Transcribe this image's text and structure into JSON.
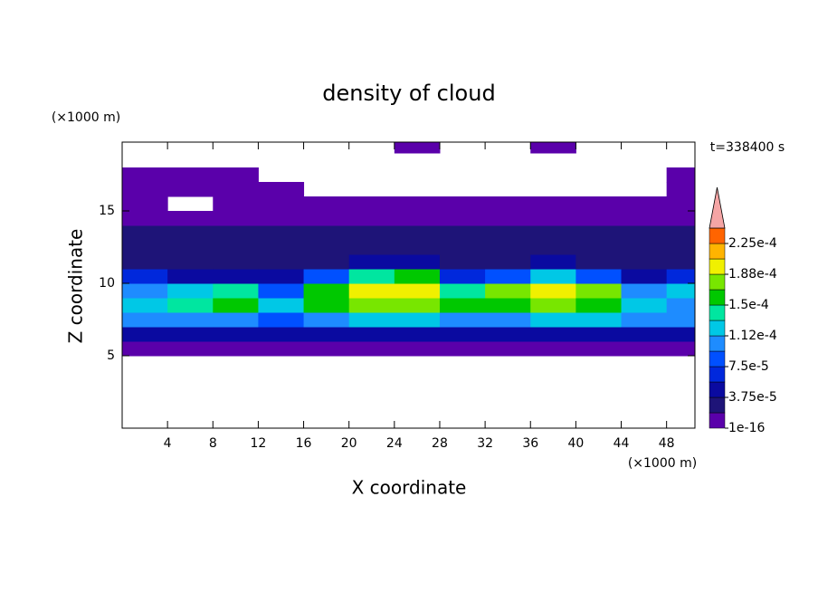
{
  "chart_data": {
    "type": "contour",
    "title": "density of cloud",
    "xlabel": "X coordinate",
    "ylabel": "Z coordinate",
    "xlabel_unit": "(×1000 m)",
    "ylabel_unit": "(×1000 m)",
    "annotation": "t=338400 s",
    "xlim": [
      0,
      50.5
    ],
    "ylim": [
      0,
      19.75
    ],
    "xticks": [
      4,
      8,
      12,
      16,
      20,
      24,
      28,
      32,
      36,
      40,
      44,
      48
    ],
    "yticks": [
      5,
      10,
      15
    ],
    "x_edges": [
      0,
      4,
      8,
      12,
      16,
      20,
      24,
      28,
      32,
      36,
      40,
      44,
      48,
      50.5
    ],
    "z_edges": [
      0,
      1,
      2,
      3,
      4,
      5,
      6,
      7,
      8,
      9,
      10,
      11,
      12,
      13,
      14,
      15,
      16,
      17,
      18,
      19,
      19.75
    ],
    "field": [
      [
        null,
        null,
        null,
        null,
        null,
        null,
        null,
        null,
        null,
        null,
        null,
        null,
        null
      ],
      [
        null,
        null,
        null,
        null,
        null,
        null,
        null,
        null,
        null,
        null,
        null,
        null,
        null
      ],
      [
        null,
        null,
        null,
        null,
        null,
        null,
        null,
        null,
        null,
        null,
        null,
        null,
        null
      ],
      [
        null,
        null,
        null,
        null,
        null,
        null,
        null,
        null,
        null,
        null,
        null,
        null,
        null
      ],
      [
        null,
        null,
        null,
        null,
        null,
        null,
        null,
        null,
        null,
        null,
        null,
        null,
        null
      ],
      [
        1.5e-05,
        1.5e-05,
        1.5e-05,
        1.5e-05,
        1.5e-05,
        1.5e-05,
        1.5e-05,
        1.5e-05,
        1.5e-05,
        1.5e-05,
        1.5e-05,
        1.5e-05,
        1.5e-05
      ],
      [
        4e-05,
        4e-05,
        4e-05,
        4e-05,
        4.5e-05,
        4.5e-05,
        4.5e-05,
        4e-05,
        4e-05,
        4.5e-05,
        4e-05,
        4e-05,
        4e-05
      ],
      [
        0.0001,
        0.00011,
        0.00011,
        9e-05,
        0.00011,
        0.00012,
        0.00012,
        0.00011,
        0.00011,
        0.00012,
        0.00012,
        0.0001,
        0.0001
      ],
      [
        0.00012,
        0.00014,
        0.00015,
        0.00012,
        0.00016,
        0.00018,
        0.00018,
        0.00015,
        0.00016,
        0.00018,
        0.00016,
        0.00012,
        0.00011
      ],
      [
        0.0001,
        0.00012,
        0.00014,
        9e-05,
        0.00015,
        0.00019,
        0.000195,
        0.00014,
        0.00017,
        0.000195,
        0.00017,
        0.0001,
        0.00012
      ],
      [
        6e-05,
        5e-05,
        5e-05,
        4e-05,
        8e-05,
        0.00014,
        0.00015,
        7e-05,
        9e-05,
        0.00012,
        8e-05,
        5e-05,
        6e-05
      ],
      [
        3.5e-05,
        3e-05,
        3e-05,
        3e-05,
        3.5e-05,
        4e-05,
        4.5e-05,
        3.5e-05,
        3.5e-05,
        4e-05,
        3.5e-05,
        3e-05,
        3.5e-05
      ],
      [
        2.5e-05,
        2.5e-05,
        2.5e-05,
        2.5e-05,
        2.5e-05,
        2.5e-05,
        2.5e-05,
        2.5e-05,
        2.5e-05,
        2.5e-05,
        2.5e-05,
        2.5e-05,
        2.5e-05
      ],
      [
        2e-05,
        2e-05,
        2e-05,
        2e-05,
        2e-05,
        2e-05,
        2e-05,
        2e-05,
        2e-05,
        2e-05,
        2e-05,
        2e-05,
        2e-05
      ],
      [
        1e-05,
        1e-05,
        1e-05,
        1e-05,
        1e-05,
        1e-05,
        1e-05,
        1e-05,
        1e-05,
        1e-05,
        1e-05,
        1e-05,
        1e-05
      ],
      [
        5e-06,
        null,
        5e-06,
        5e-06,
        5e-06,
        5e-06,
        5e-06,
        5e-06,
        5e-06,
        5e-06,
        5e-06,
        5e-06,
        5e-06
      ],
      [
        5e-06,
        5e-06,
        5e-06,
        5e-06,
        null,
        null,
        null,
        null,
        null,
        null,
        null,
        null,
        5e-06
      ],
      [
        5e-06,
        5e-06,
        5e-06,
        null,
        null,
        null,
        null,
        null,
        null,
        null,
        null,
        null,
        5e-06
      ],
      [
        null,
        null,
        null,
        null,
        null,
        null,
        null,
        null,
        null,
        null,
        null,
        null,
        null
      ],
      [
        null,
        null,
        null,
        null,
        null,
        null,
        5e-06,
        null,
        null,
        5e-06,
        null,
        null,
        null
      ]
    ],
    "colorbar": {
      "levels": [
        1e-16,
        1.875e-05,
        3.75e-05,
        5.625e-05,
        7.5e-05,
        9.375e-05,
        0.0001125,
        0.00013125,
        0.00015,
        0.00016875,
        0.0001875,
        0.00020625,
        0.000225,
        0.00024375
      ],
      "colors": [
        "#5a00aa",
        "#1e1478",
        "#0a0aa0",
        "#0028dc",
        "#0050ff",
        "#1e8cff",
        "#00c8e6",
        "#00e6a0",
        "#00c800",
        "#78e600",
        "#f0f000",
        "#ffb400",
        "#ff6400"
      ],
      "extend_color": "#f5a5a5",
      "ticks": [
        {
          "value": 1e-16,
          "label": "1e-16"
        },
        {
          "value": 3.75e-05,
          "label": "3.75e-5"
        },
        {
          "value": 7.5e-05,
          "label": "7.5e-5"
        },
        {
          "value": 0.0001125,
          "label": "1.12e-4"
        },
        {
          "value": 0.00015,
          "label": "1.5e-4"
        },
        {
          "value": 0.0001875,
          "label": "1.88e-4"
        },
        {
          "value": 0.000225,
          "label": "2.25e-4"
        }
      ]
    }
  }
}
